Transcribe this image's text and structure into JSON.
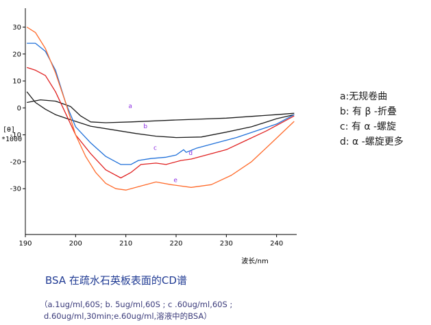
{
  "chart_data": {
    "type": "line",
    "title": "",
    "xlabel": "波长/nm",
    "ylabel": [
      "[θ]",
      "*1000"
    ],
    "xlim": [
      190,
      244
    ],
    "ylim": [
      -47,
      37
    ],
    "xticks": [
      190,
      200,
      210,
      220,
      230,
      240
    ],
    "yticks": [
      30,
      20,
      10,
      0,
      -10,
      -20,
      -30
    ],
    "grid": false,
    "series": [
      {
        "name": "a",
        "label_pos": [
          210.5,
          0
        ],
        "color": "#1a1a1a",
        "points": [
          [
            190.3,
            2
          ],
          [
            193,
            3
          ],
          [
            196,
            2.5
          ],
          [
            199,
            0.5
          ],
          [
            201,
            -3
          ],
          [
            203,
            -5.2
          ],
          [
            206,
            -5.5
          ],
          [
            211,
            -5.2
          ],
          [
            220,
            -4.5
          ],
          [
            230,
            -3.8
          ],
          [
            240,
            -2.5
          ],
          [
            243.5,
            -2
          ]
        ]
      },
      {
        "name": "b",
        "label_pos": [
          213.5,
          -7.5
        ],
        "color": "#1a1a1a",
        "points": [
          [
            190.3,
            6
          ],
          [
            192,
            2
          ],
          [
            194,
            -0.5
          ],
          [
            196,
            -2.5
          ],
          [
            198,
            -3.8
          ],
          [
            200,
            -5
          ],
          [
            203,
            -6.8
          ],
          [
            207,
            -8
          ],
          [
            212,
            -9.5
          ],
          [
            216,
            -10.5
          ],
          [
            220,
            -11
          ],
          [
            225,
            -10.8
          ],
          [
            230,
            -9
          ],
          [
            235,
            -7
          ],
          [
            240,
            -4
          ],
          [
            243.5,
            -2.5
          ]
        ]
      },
      {
        "name": "c",
        "label_pos": [
          215.5,
          -15.5
        ],
        "color": "#1e6fd9",
        "points": [
          [
            190.3,
            24
          ],
          [
            192,
            24
          ],
          [
            194,
            21
          ],
          [
            196,
            14
          ],
          [
            198,
            2
          ],
          [
            200,
            -7
          ],
          [
            203,
            -13
          ],
          [
            206,
            -18
          ],
          [
            209,
            -21
          ],
          [
            211,
            -21
          ],
          [
            212.5,
            -19.5
          ],
          [
            215,
            -18.8
          ],
          [
            218,
            -18.3
          ],
          [
            220,
            -17.5
          ],
          [
            221.5,
            -15.5
          ],
          [
            222,
            -16.5
          ],
          [
            224,
            -15
          ],
          [
            228,
            -13
          ],
          [
            232,
            -11
          ],
          [
            236,
            -8.5
          ],
          [
            240,
            -6
          ],
          [
            243.5,
            -2.5
          ]
        ]
      },
      {
        "name": "d",
        "label_pos": [
          222.5,
          -17.5
        ],
        "color": "#e02020",
        "points": [
          [
            190.3,
            15
          ],
          [
            192,
            14
          ],
          [
            194,
            12
          ],
          [
            196,
            6
          ],
          [
            198,
            -2
          ],
          [
            200,
            -10
          ],
          [
            203,
            -17
          ],
          [
            206,
            -23
          ],
          [
            209,
            -26
          ],
          [
            211,
            -24
          ],
          [
            213,
            -21
          ],
          [
            216,
            -20.5
          ],
          [
            218,
            -21
          ],
          [
            221,
            -19.5
          ],
          [
            223,
            -19
          ],
          [
            226,
            -17.5
          ],
          [
            230,
            -15.5
          ],
          [
            234,
            -12
          ],
          [
            238,
            -8.5
          ],
          [
            243.5,
            -3
          ]
        ]
      },
      {
        "name": "e",
        "label_pos": [
          219.5,
          -27.5
        ],
        "color": "#ff6a2a",
        "points": [
          [
            190.3,
            30
          ],
          [
            192,
            28
          ],
          [
            194,
            22
          ],
          [
            196,
            13
          ],
          [
            198,
            2
          ],
          [
            200,
            -10
          ],
          [
            202,
            -18
          ],
          [
            204,
            -24
          ],
          [
            206,
            -28
          ],
          [
            208,
            -30
          ],
          [
            210,
            -30.5
          ],
          [
            213,
            -29
          ],
          [
            216,
            -27.5
          ],
          [
            219,
            -28.5
          ],
          [
            223,
            -29.5
          ],
          [
            227,
            -28.5
          ],
          [
            231,
            -25
          ],
          [
            235,
            -20
          ],
          [
            239,
            -13
          ],
          [
            243.5,
            -5
          ]
        ]
      }
    ]
  },
  "legend": [
    "a:无规卷曲",
    "b: 有 β -折叠",
    "c: 有 α -螺旋",
    "d:  α -螺旋更多"
  ],
  "caption": "BSA 在疏水石英板表面的CD谱",
  "note_line1": "（a.1ug/ml,60S; b. 5ug/ml,60S ; c .60ug/ml,60S ;",
  "note_line2": "d.60ug/ml,30min;e.60ug/ml,溶液中的BSA）"
}
